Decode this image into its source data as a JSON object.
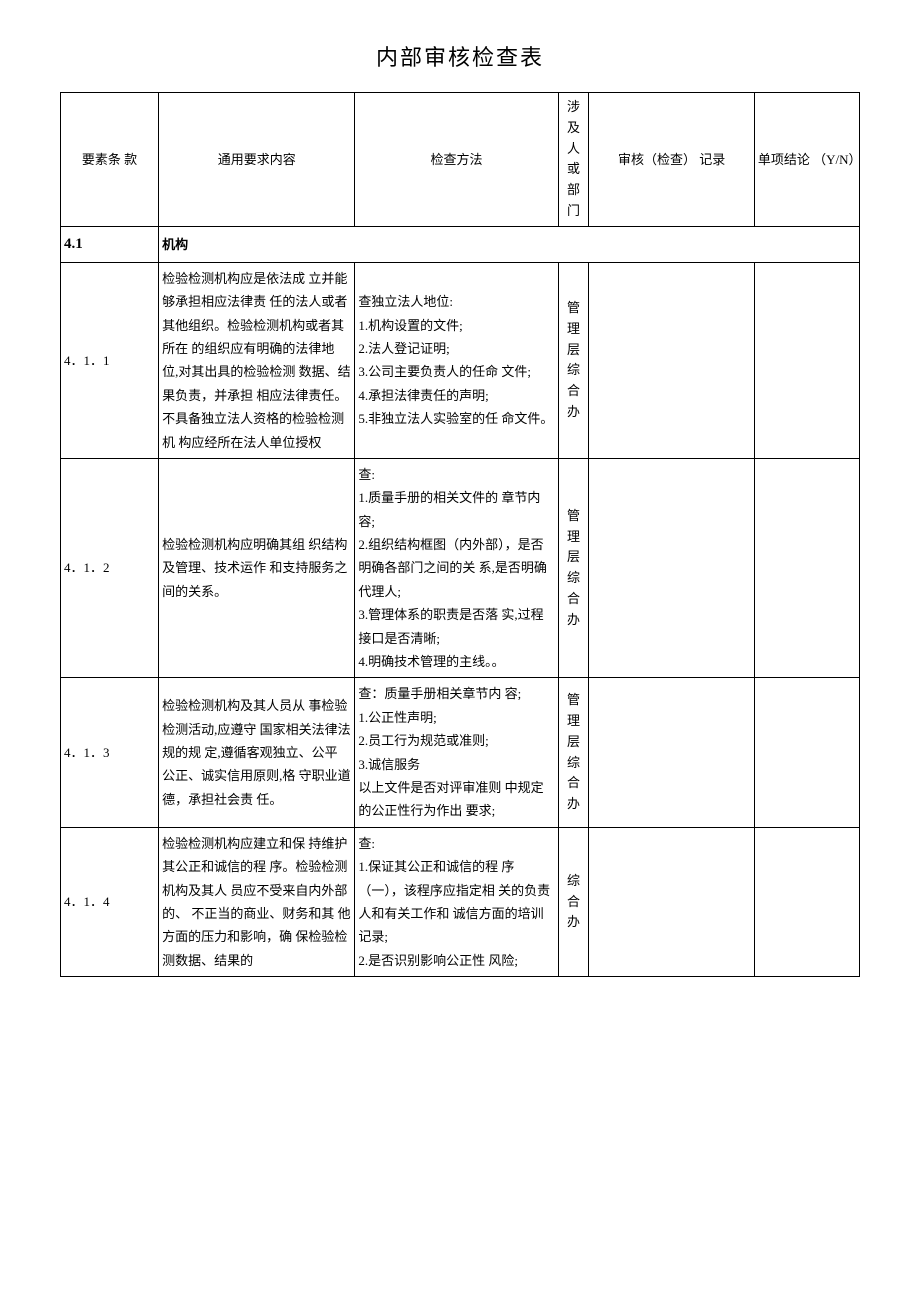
{
  "title": "内部审核检查表",
  "headers": {
    "clause": "要素条  款",
    "requirement": "通用要求内容",
    "method": "检查方法",
    "dept": [
      "涉",
      "及",
      "人",
      "或",
      "部",
      "门"
    ],
    "record": "审核（检查） 记录",
    "conclusion": "单项结论  （Y/N）"
  },
  "section": {
    "num": "4.1",
    "label": "机构"
  },
  "rows": [
    {
      "clause": "4．1．1",
      "requirement": "检验检测机构应是依法成   立并能够承担相应法律责   任的法人或者其他组织。检验检测机构或者其所在   的组织应有明确的法律地 位,对其出具的检验检测 数据、结果负责，并承担 相应法律责任。不具备独立法人资格的检验检测机   构应经所在法人单位授权",
      "method": "查独立法人地位:\n1.机构设置的文件;\n2.法人登记证明;\n3.公司主要负责人的任命 文件;\n4.承担法律责任的声明;\n5.非独立法人实验室的任   命文件。",
      "dept": [
        "管",
        "理",
        "层",
        "综",
        "合",
        "办"
      ],
      "record": "",
      "conclusion": ""
    },
    {
      "clause": "4．1．2",
      "requirement": "检验检测机构应明确其组   织结构及管理、技术运作 和支持服务之间的关系。",
      "method": "查:\n1.质量手册的相关文件的 章节内容;\n2.组织结构框图（内外部），是否明确各部门之间的关  系,是否明确代理人;\n3.管理体系的职责是否落  实,过程接口是否清晰;\n4.明确技术管理的主线。。",
      "dept": [
        "管",
        "理",
        "层",
        "综",
        "合",
        "办"
      ],
      "record": "",
      "conclusion": ""
    },
    {
      "clause": "4．1．3",
      "requirement": "检验检测机构及其人员从   事检验检测活动,应遵守 国家相关法律法规的规 定,遵循客观独立、公平 公正、诚实信用原则,格 守职业道德，承担社会责 任。",
      "method": "查：质量手册相关章节内 容;\n1.公正性声明;\n2.员工行为规范或准则;\n3.诚信服务\n以上文件是否对评审准则  中规定的公正性行为作出 要求;",
      "dept": [
        "管",
        "理",
        "层",
        "综",
        "合",
        "办"
      ],
      "record": "",
      "conclusion": ""
    },
    {
      "clause": "4．1．4",
      "requirement": "检验检测机构应建立和保   持维护其公正和诚信的程 序。检验检测机构及其人   员应不受来自内外部的、   不正当的商业、财务和其 他方面的压力和影响，确 保检验检测数据、结果的",
      "method": "查:\n1.保证其公正和诚信的程      序（一），该程序应指定相   关的负责人和有关工作和 诚信方面的培训记录;\n  2.是否识别影响公正性     风险;",
      "dept": [
        "综",
        "合",
        "办"
      ],
      "record": "",
      "conclusion": ""
    }
  ],
  "colors": {
    "background": "#ffffff",
    "text": "#000000",
    "border": "#000000"
  },
  "typography": {
    "title_fontsize": 22,
    "body_fontsize": 13,
    "font_family": "SimSun"
  },
  "column_widths_approx": {
    "clause": 70,
    "requirement": 140,
    "method": 145,
    "dept": 22,
    "record": 118,
    "conclusion": 75
  }
}
